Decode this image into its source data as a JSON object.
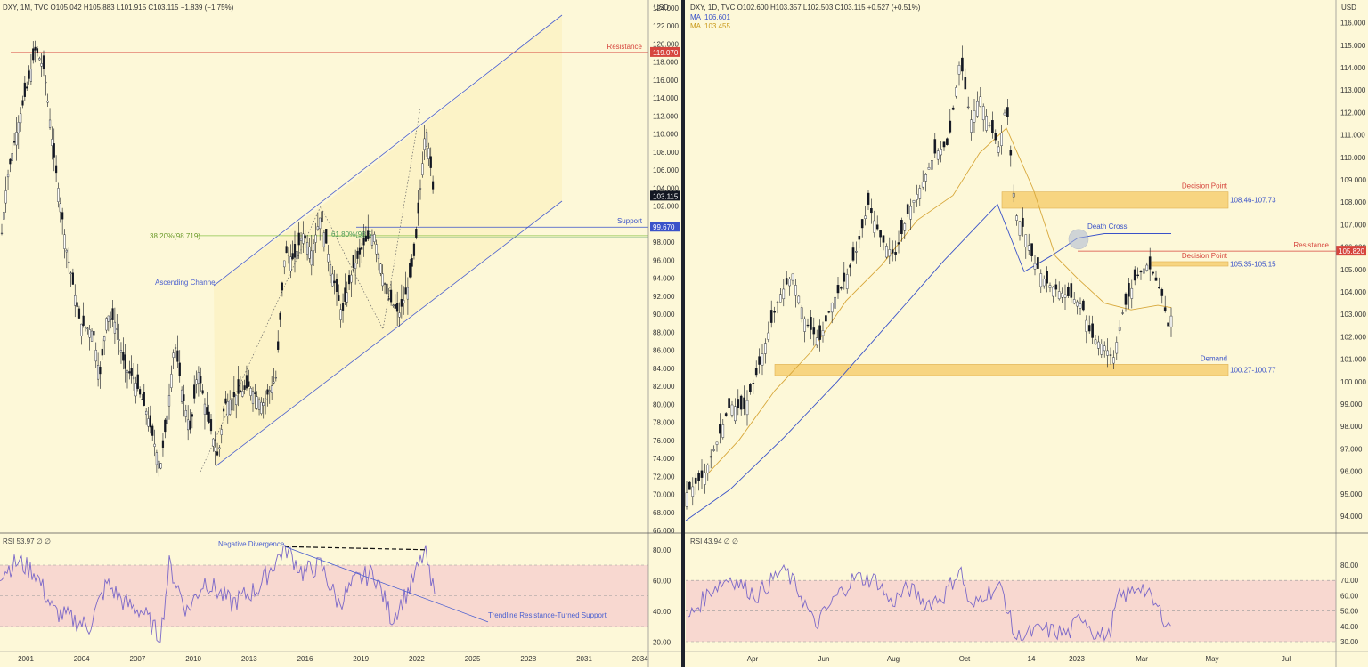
{
  "colors": {
    "background": "#fdf8d8",
    "up_candle": "#ffffff",
    "down_candle": "#131722",
    "channel": "#4a5fd0",
    "resistance": "#d6453d",
    "support": "#3a52c9",
    "fib": "#8bc34a",
    "zone": "#f7cf73",
    "ma200": "#3a52c9",
    "ma50": "#d7a73a",
    "rsi": "#7b68c8",
    "rsi_band": "#f8d8d0"
  },
  "left": {
    "header": "DXY, 1M, TVC  O105.042  H105.883  L101.915  C103.115  −1.839 (−1.75%)",
    "currency": "USD",
    "price_axis": [
      "124.000",
      "122.000",
      "120.000",
      "118.000",
      "116.000",
      "114.000",
      "112.000",
      "110.000",
      "108.000",
      "106.000",
      "104.000",
      "102.000",
      "100.000",
      "98.000",
      "96.000",
      "94.000",
      "92.000",
      "90.000",
      "88.000",
      "86.000",
      "84.000",
      "82.000",
      "80.000",
      "78.000",
      "76.000",
      "74.000",
      "72.000",
      "70.000",
      "68.000",
      "66.000"
    ],
    "time_axis": [
      "2001",
      "2004",
      "2007",
      "2010",
      "2013",
      "2016",
      "2019",
      "2022",
      "2025",
      "2028",
      "2031",
      "2034"
    ],
    "resistance_label": "Resistance",
    "resistance_price": "119.070",
    "support_label": "Support",
    "support_price": "99.670",
    "current_price": "103.115",
    "fib_38": "38.20%(98.719)",
    "fib_61": "61.80%(98.5",
    "channel_label": "Ascending Channel",
    "rsi_header": "RSI  53.97  ∅  ∅",
    "rsi_axis": [
      "80.00",
      "60.00",
      "40.00",
      "20.00"
    ],
    "negative_divergence": "Negative Divergence",
    "trendline_label": "Trendline Resistance-Turned Support"
  },
  "right": {
    "header": "DXY, 1D, TVC  O102.600  H103.357  L102.503  C103.115  +0.527 (+0.51%)",
    "ma1_label": "MA",
    "ma1_value": "106.601",
    "ma2_label": "MA",
    "ma2_value": "103.455",
    "currency": "USD",
    "price_axis": [
      "116.000",
      "115.000",
      "114.000",
      "113.000",
      "112.000",
      "111.000",
      "110.000",
      "109.000",
      "108.000",
      "107.000",
      "106.000",
      "105.000",
      "104.000",
      "103.000",
      "102.000",
      "101.000",
      "100.000",
      "99.000",
      "98.000",
      "97.000",
      "96.000",
      "95.000",
      "94.000"
    ],
    "time_axis": [
      "Apr",
      "Jun",
      "Aug",
      "Oct",
      "14",
      "2023",
      "Mar",
      "May",
      "Jul"
    ],
    "decision_point_1": "Decision Point",
    "decision_range_1": "108.46-107.73",
    "decision_point_2": "Decision Point",
    "decision_range_2": "105.35-105.15",
    "demand_label": "Demand",
    "demand_range": "100.27-100.77",
    "death_cross": "Death Cross",
    "resistance_label": "Resistance",
    "resistance_price": "105.820",
    "rsi_header": "RSI  43.94  ∅  ∅",
    "rsi_axis": [
      "80.00",
      "70.00",
      "60.00",
      "50.00",
      "40.00",
      "30.00"
    ]
  },
  "chart_data": [
    {
      "type": "candlestick",
      "title": "DXY, 1M, TVC",
      "ylim": [
        66,
        124
      ],
      "x": [
        2000,
        2001,
        2002,
        2003,
        2004,
        2005,
        2006,
        2007,
        2008,
        2009,
        2010,
        2011,
        2012,
        2013,
        2014,
        2015,
        2016,
        2017,
        2018,
        2019,
        2020,
        2021,
        2022,
        2022.8,
        2023.2
      ],
      "close": [
        110,
        117,
        119,
        102,
        88,
        87,
        85,
        80,
        74,
        78,
        79,
        75,
        80,
        80,
        82,
        97,
        96,
        101,
        90,
        97,
        98,
        90,
        104,
        112,
        103.1
      ],
      "fib_levels": [
        98.719
      ]
    },
    {
      "type": "candlestick",
      "title": "DXY, 1D, TVC",
      "ylim": [
        93.5,
        116
      ],
      "close": [
        95,
        95.7,
        97.5,
        99,
        98.7,
        100.6,
        102,
        104.5,
        102.5,
        103.8,
        106.5,
        105.5,
        105.8,
        107.8,
        110.5,
        109.2,
        114.2,
        111.5,
        112.8,
        110.2,
        106.5,
        105,
        104.2,
        103,
        102.3,
        101.5,
        102.6,
        103.9,
        104.8,
        105.3,
        104.2,
        102.4,
        103.1
      ],
      "zones": [
        [
          107.73,
          108.46
        ],
        [
          105.15,
          105.35
        ],
        [
          100.27,
          100.77
        ]
      ]
    }
  ]
}
